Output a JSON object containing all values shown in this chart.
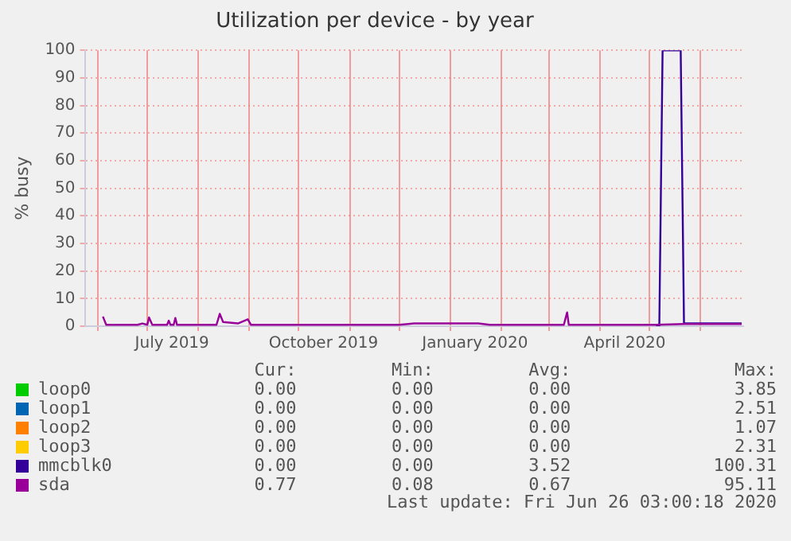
{
  "chart_data": {
    "type": "line",
    "title": "Utilization per device - by year",
    "ylabel": "% busy",
    "xlim": [
      "2019-05-24",
      "2020-06-27"
    ],
    "xticks": [
      {
        "value": "2019-06-01",
        "label": null
      },
      {
        "value": "2019-07-01",
        "label": null
      },
      {
        "value": "2019-07-16",
        "label": "July 2019"
      },
      {
        "value": "2019-08-01",
        "label": null
      },
      {
        "value": "2019-09-01",
        "label": null
      },
      {
        "value": "2019-10-01",
        "label": null
      },
      {
        "value": "2019-10-16",
        "label": "October 2019"
      },
      {
        "value": "2019-11-01",
        "label": null
      },
      {
        "value": "2019-12-01",
        "label": null
      },
      {
        "value": "2020-01-01",
        "label": null
      },
      {
        "value": "2020-01-16",
        "label": "January 2020"
      },
      {
        "value": "2020-02-01",
        "label": null
      },
      {
        "value": "2020-03-01",
        "label": null
      },
      {
        "value": "2020-04-01",
        "label": null
      },
      {
        "value": "2020-04-16",
        "label": "April 2020"
      },
      {
        "value": "2020-05-01",
        "label": null
      },
      {
        "value": "2020-06-01",
        "label": null
      }
    ],
    "ylim": [
      0,
      100
    ],
    "yticks": [
      0,
      10,
      20,
      30,
      40,
      50,
      60,
      70,
      80,
      90,
      100
    ],
    "grid": true,
    "legend": "bottom",
    "marker": "none",
    "line_style": "solid",
    "series": [
      {
        "name": "loop0",
        "color": "#00cc00"
      },
      {
        "name": "loop1",
        "color": "#0066b3"
      },
      {
        "name": "loop2",
        "color": "#ff8000"
      },
      {
        "name": "loop3",
        "color": "#ffcc00"
      },
      {
        "name": "mmcblk0",
        "color": "#330099",
        "x": [
          "2020-05-05",
          "2020-05-07",
          "2020-05-09",
          "2020-05-20",
          "2020-05-22",
          "2020-06-26"
        ],
        "values": [
          0,
          0,
          100,
          100,
          1,
          1
        ]
      },
      {
        "name": "sda",
        "color": "#990099",
        "x": [
          "2019-06-04",
          "2019-06-06",
          "2019-06-25",
          "2019-06-28",
          "2019-07-01",
          "2019-07-02",
          "2019-07-04",
          "2019-07-13",
          "2019-07-14",
          "2019-07-15",
          "2019-07-17",
          "2019-07-18",
          "2019-07-19",
          "2019-08-12",
          "2019-08-14",
          "2019-08-16",
          "2019-08-25",
          "2019-08-31",
          "2019-09-02",
          "2019-12-01",
          "2019-12-10",
          "2020-01-18",
          "2020-01-25",
          "2020-03-10",
          "2020-03-12",
          "2020-03-13",
          "2020-05-05",
          "2020-05-22",
          "2020-06-25",
          "2020-06-26"
        ],
        "values": [
          3.5,
          0.5,
          0.5,
          1,
          0.5,
          3.2,
          0.5,
          0.5,
          2,
          0.5,
          0.5,
          3,
          0.5,
          0.5,
          4.5,
          1.5,
          1,
          2.5,
          0.5,
          0.5,
          1,
          1,
          0.5,
          0.5,
          5,
          0.5,
          0.5,
          0.8,
          0.8,
          0.8
        ]
      }
    ],
    "annotations": [
      "Cur:",
      "Min:",
      "Avg:",
      "Max:",
      "0.00",
      "0.00",
      "0.00",
      "3.85",
      "0.00",
      "0.00",
      "0.00",
      "2.51",
      "0.00",
      "0.00",
      "0.00",
      "1.07",
      "0.00",
      "0.00",
      "0.00",
      "2.31",
      "0.00",
      "0.00",
      "3.52",
      "100.31",
      "0.77",
      "0.08",
      "0.67",
      "95.11",
      "Last update: Fri Jun 26 03:00:18 2020"
    ]
  }
}
